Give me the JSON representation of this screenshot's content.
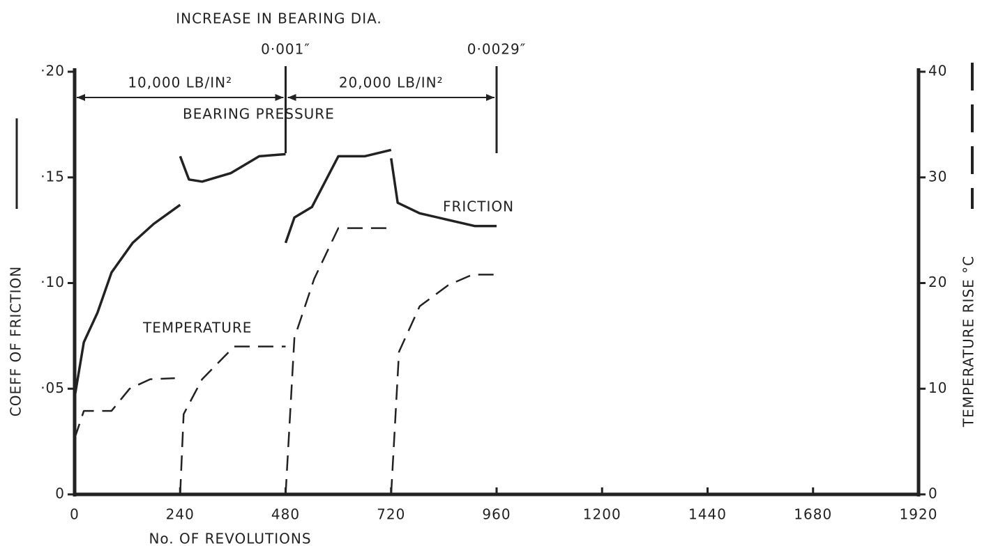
{
  "chart_data": {
    "type": "line",
    "title": "INCREASE IN BEARING DIA.",
    "x_label": "No. OF REVOLUTIONS",
    "y_label": "COEFF OF FRICTION",
    "y2_label": "TEMPERATURE RISE °C",
    "xlim": [
      0,
      1920
    ],
    "xticks": [
      0,
      240,
      480,
      720,
      960,
      1200,
      1440,
      1680,
      1920
    ],
    "ylim": [
      0,
      0.2
    ],
    "yticks": [
      {
        "value": 0,
        "label": "0"
      },
      {
        "value": 0.05,
        "label": "·05"
      },
      {
        "value": 0.1,
        "label": "·10"
      },
      {
        "value": 0.15,
        "label": "·15"
      },
      {
        "value": 0.2,
        "label": "·20"
      }
    ],
    "y2lim": [
      0,
      40
    ],
    "y2ticks": [
      0,
      10,
      20,
      30,
      40
    ],
    "grid": false,
    "series": [
      {
        "name": "FRICTION",
        "color": "#222",
        "dash": "solid",
        "x": [
          0,
          21,
          52,
          84,
          132,
          180,
          240,
          null,
          240,
          260,
          290,
          355,
          420,
          480,
          null,
          480,
          500,
          540,
          600,
          660,
          720,
          null,
          720,
          735,
          785,
          910,
          960
        ],
        "values": [
          0.046,
          0.072,
          0.086,
          0.105,
          0.119,
          0.128,
          0.137,
          null,
          0.16,
          0.149,
          0.148,
          0.152,
          0.16,
          0.161,
          null,
          0.119,
          0.131,
          0.136,
          0.16,
          0.16,
          0.163,
          null,
          0.159,
          0.138,
          0.133,
          0.127,
          0.127
        ]
      },
      {
        "name": "TEMPERATURE",
        "color": "#222",
        "dash": "dashed",
        "axis": "y2",
        "x": [
          0,
          21,
          84,
          125,
          172,
          228,
          null,
          240,
          248,
          290,
          363,
          480,
          null,
          480,
          500,
          545,
          600,
          720,
          null,
          720,
          738,
          785,
          850,
          905,
          960
        ],
        "values": [
          5.3,
          7.9,
          7.9,
          10,
          10.9,
          11,
          null,
          0,
          7.6,
          10.9,
          14,
          14,
          null,
          0,
          14.8,
          20.4,
          25.2,
          25.2,
          null,
          0,
          13.5,
          17.8,
          19.8,
          20.8,
          20.8
        ]
      }
    ],
    "annotations": [
      {
        "text": "0·001″",
        "x": 480
      },
      {
        "text": "0·0029″",
        "x": 960
      }
    ],
    "pressure": [
      {
        "text": "10,000 LB/IN²",
        "x": [
          0,
          480
        ]
      },
      {
        "text": "20,000 LB/IN²",
        "x": [
          480,
          960
        ]
      }
    ],
    "pressure_label": "BEARING PRESSURE"
  }
}
